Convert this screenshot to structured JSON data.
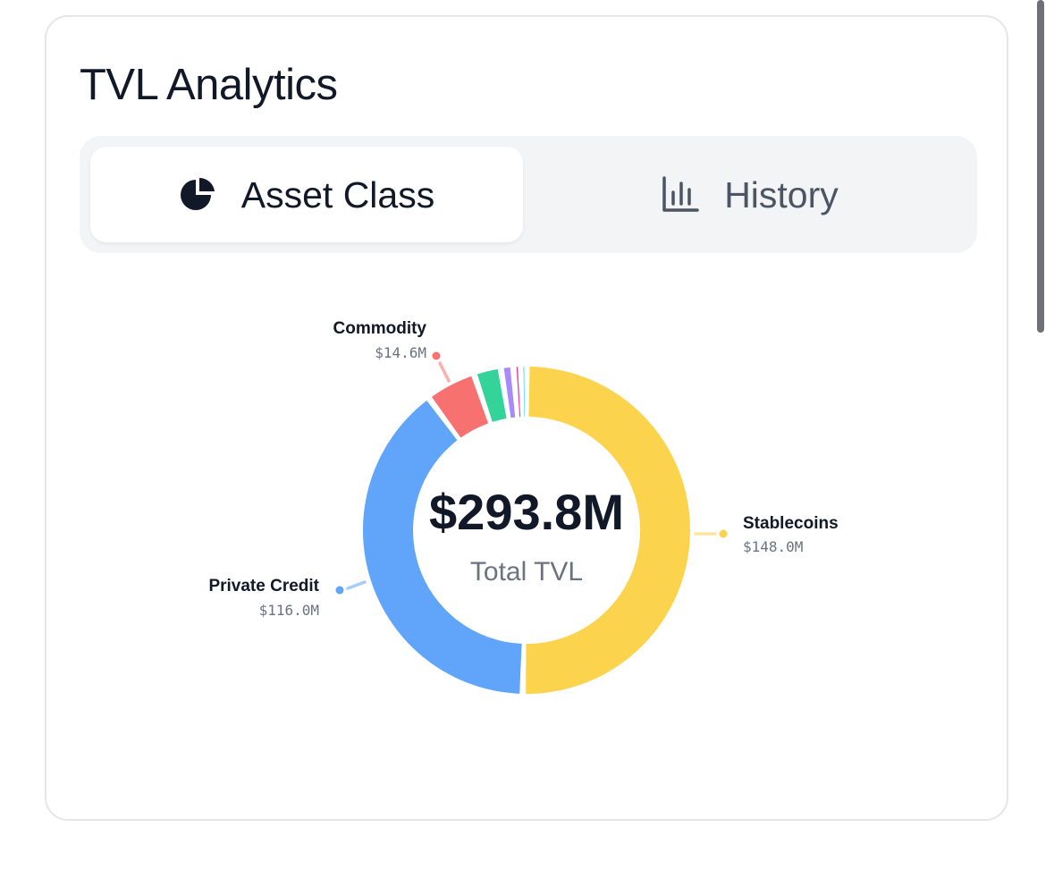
{
  "card": {
    "title": "TVL Analytics"
  },
  "tabs": [
    {
      "label": "Asset Class",
      "icon": "pie-chart-icon",
      "active": true
    },
    {
      "label": "History",
      "icon": "bar-chart-icon",
      "active": false
    }
  ],
  "chart_data": {
    "type": "pie",
    "donut": true,
    "center_value": "$293.8M",
    "center_label": "Total TVL",
    "slices": [
      {
        "name": "Stablecoins",
        "value": 148.0,
        "display": "$148.0M",
        "color": "#fcd34d",
        "labeled": true
      },
      {
        "name": "Private Credit",
        "value": 116.0,
        "display": "$116.0M",
        "color": "#60a5fa",
        "labeled": true
      },
      {
        "name": "Commodity",
        "value": 14.6,
        "display": "$14.6M",
        "color": "#f87171",
        "labeled": true
      },
      {
        "name": "",
        "value": 7.8,
        "display": "",
        "color": "#34d399",
        "labeled": false
      },
      {
        "name": "",
        "value": 3.6,
        "display": "",
        "color": "#a78bfa",
        "labeled": false
      },
      {
        "name": "",
        "value": 2.2,
        "display": "",
        "color": "#ec4899",
        "labeled": false
      },
      {
        "name": "",
        "value": 1.6,
        "display": "",
        "color": "#22d3ee",
        "labeled": false
      }
    ]
  },
  "colors": {
    "title": "#111827",
    "card_border": "#e4e6ea",
    "tabbar_bg": "#f3f4f6",
    "label_name": "#111827",
    "label_value": "#6b7280",
    "center_label": "#6b7280"
  }
}
